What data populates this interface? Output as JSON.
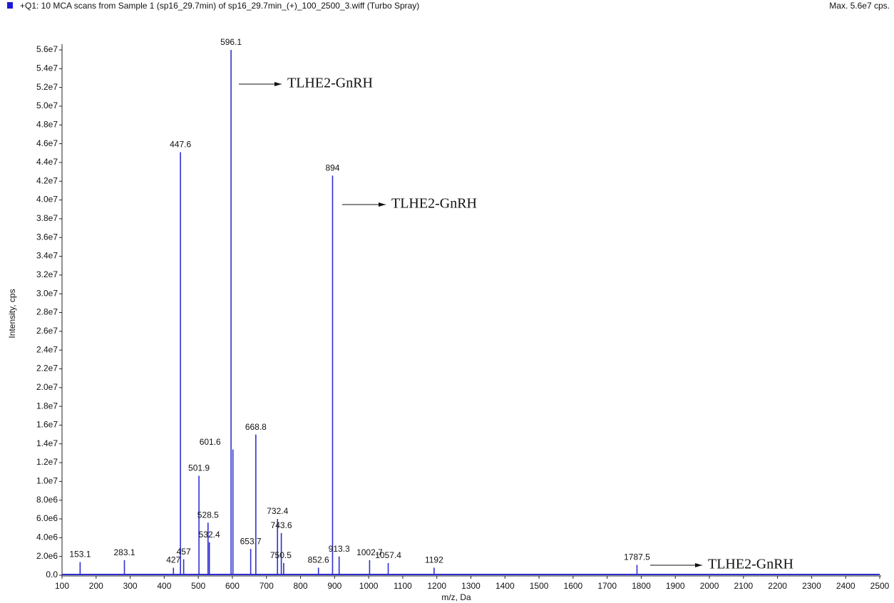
{
  "chart_data": {
    "type": "stem",
    "title": "+Q1: 10 MCA scans from Sample 1 (sp16_29.7min) of sp16_29.7min_(+)_100_2500_3.wiff (Turbo Spray)",
    "subtitle": "Max. 5.6e7 cps.",
    "x_label": "m/z, Da",
    "y_label": "Intensity, cps",
    "color": "#2f2fd0",
    "x": [
      153.1,
      283.1,
      427.0,
      447.6,
      457.0,
      501.9,
      528.5,
      532.4,
      596.1,
      601.6,
      653.7,
      668.8,
      732.4,
      743.6,
      750.5,
      852.6,
      894.0,
      913.3,
      1002.7,
      1057.4,
      1192.0,
      1787.5
    ],
    "values": [
      1400000,
      1600000,
      800000,
      45100000,
      1700000,
      10600000,
      5600000,
      3500000,
      56000000,
      13400000,
      2800000,
      15000000,
      6000000,
      4500000,
      1300000,
      800000,
      42600000,
      2000000,
      1600000,
      1300000,
      800000,
      1100000
    ],
    "annotations": [
      "TLHE2-GnRH",
      "TLHE2-GnRH",
      "TLHE2-GnRH"
    ],
    "xlim": [
      100,
      2500
    ],
    "xticks": [
      100,
      200,
      300,
      400,
      500,
      600,
      700,
      800,
      900,
      1000,
      1100,
      1200,
      1300,
      1400,
      1500,
      1600,
      1700,
      1800,
      1900,
      2000,
      2100,
      2200,
      2300,
      2400,
      2500
    ],
    "ylim": [
      0,
      56000000
    ],
    "yticks": [
      {
        "value": 0,
        "label": "0.0"
      },
      {
        "value": 2000000,
        "label": "2.0e6"
      },
      {
        "value": 4000000,
        "label": "4.0e6"
      },
      {
        "value": 6000000,
        "label": "6.0e6"
      },
      {
        "value": 8000000,
        "label": "8.0e6"
      },
      {
        "value": 10000000,
        "label": "1.0e7"
      },
      {
        "value": 12000000,
        "label": "1.2e7"
      },
      {
        "value": 14000000,
        "label": "1.4e7"
      },
      {
        "value": 16000000,
        "label": "1.6e7"
      },
      {
        "value": 18000000,
        "label": "1.8e7"
      },
      {
        "value": 20000000,
        "label": "2.0e7"
      },
      {
        "value": 22000000,
        "label": "2.2e7"
      },
      {
        "value": 24000000,
        "label": "2.4e7"
      },
      {
        "value": 26000000,
        "label": "2.6e7"
      },
      {
        "value": 28000000,
        "label": "2.8e7"
      },
      {
        "value": 30000000,
        "label": "3.0e7"
      },
      {
        "value": 32000000,
        "label": "3.2e7"
      },
      {
        "value": 34000000,
        "label": "3.4e7"
      },
      {
        "value": 36000000,
        "label": "3.6e7"
      },
      {
        "value": 38000000,
        "label": "3.8e7"
      },
      {
        "value": 40000000,
        "label": "4.0e7"
      },
      {
        "value": 42000000,
        "label": "4.2e7"
      },
      {
        "value": 44000000,
        "label": "4.4e7"
      },
      {
        "value": 46000000,
        "label": "4.6e7"
      },
      {
        "value": 48000000,
        "label": "4.8e7"
      },
      {
        "value": 50000000,
        "label": "5.0e7"
      },
      {
        "value": 52000000,
        "label": "5.2e7"
      },
      {
        "value": 54000000,
        "label": "5.4e7"
      },
      {
        "value": 56000000,
        "label": "5.6e7"
      }
    ]
  }
}
